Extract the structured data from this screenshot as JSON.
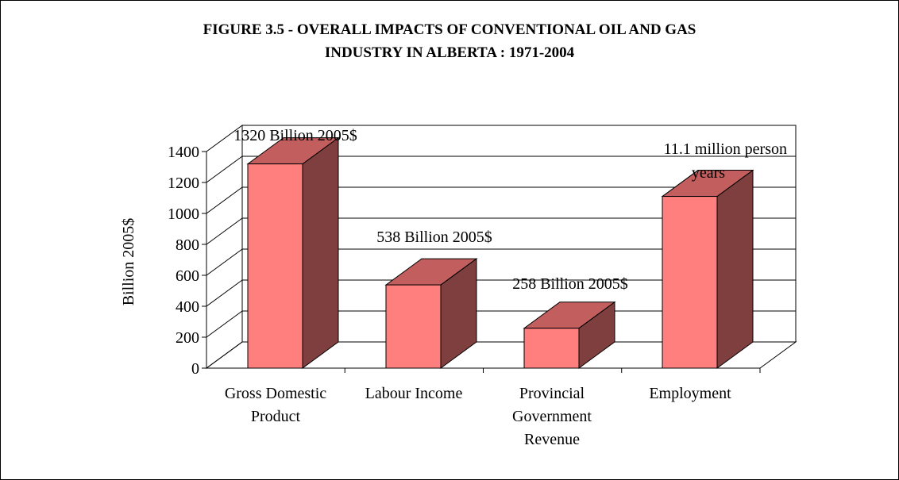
{
  "chart_data": {
    "type": "bar",
    "title": "FIGURE 3.5 - OVERALL IMPACTS OF CONVENTIONAL OIL AND GAS INDUSTRY IN ALBERTA : 1971-2004",
    "title_lines": [
      "FIGURE 3.5 - OVERALL IMPACTS OF CONVENTIONAL OIL AND GAS",
      "INDUSTRY IN ALBERTA : 1971-2004"
    ],
    "ylabel": "Billion 2005$",
    "xlabel": "",
    "ylim": [
      0,
      1400
    ],
    "yticks": [
      0,
      200,
      400,
      600,
      800,
      1000,
      1200,
      1400
    ],
    "categories": [
      [
        "Gross Domestic",
        "Product"
      ],
      [
        "Labour Income"
      ],
      [
        "Provincial",
        "Government",
        "Revenue"
      ],
      [
        "Employment"
      ]
    ],
    "values": [
      1320,
      538,
      258,
      1110
    ],
    "data_labels": [
      [
        "1320 Billion 2005$"
      ],
      [
        "538 Billion 2005$"
      ],
      [
        "258 Billion 2005$"
      ],
      [
        "11.1 million person",
        "years"
      ]
    ],
    "grid": true,
    "legend": "none",
    "colors": {
      "bar_front": "#ff7f7f",
      "bar_top": "#c25e5e",
      "bar_side": "#7f3f3f",
      "outline": "#000000"
    }
  }
}
